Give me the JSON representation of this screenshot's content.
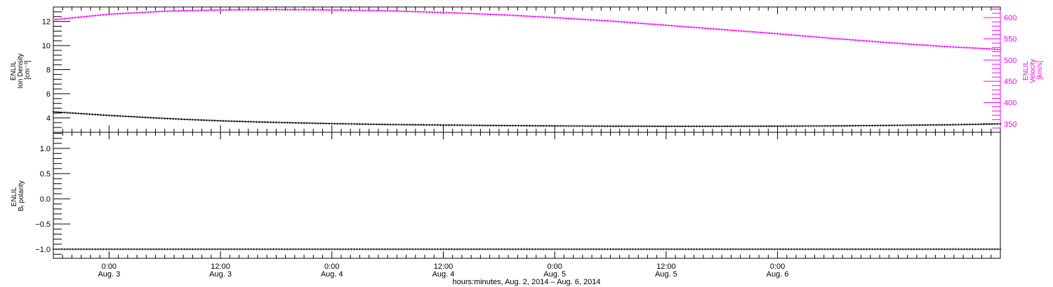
{
  "chart_data": [
    {
      "type": "line",
      "panel": "top",
      "y_left": {
        "label_line1": "ENLIL",
        "label_line2": "Ion Density",
        "label_line3": "[cm⁻³]",
        "ylim": [
          2.8,
          13.2
        ],
        "ticks": [
          4,
          6,
          8,
          10,
          12
        ],
        "tick_labels": [
          "4",
          "6",
          "8",
          "10",
          "12"
        ]
      },
      "y_right": {
        "label_line1": "ENLIL",
        "label_line2": "Velocity",
        "label_line3": "[km/s]",
        "ylim": [
          330,
          625
        ],
        "ticks": [
          350,
          400,
          450,
          500,
          550,
          600
        ],
        "tick_labels": [
          "350",
          "400",
          "450",
          "500",
          "550",
          "600"
        ],
        "color": "#ff00ff"
      },
      "series": [
        {
          "axis": "left",
          "color": "#000000",
          "x_hours": [
            0,
            6,
            12,
            18,
            24,
            30,
            36,
            42,
            48,
            54,
            60,
            66,
            72,
            78,
            84,
            90,
            96,
            102
          ],
          "values": [
            4.5,
            4.2,
            3.95,
            3.75,
            3.62,
            3.52,
            3.45,
            3.4,
            3.36,
            3.33,
            3.31,
            3.3,
            3.3,
            3.31,
            3.33,
            3.37,
            3.42,
            3.5
          ]
        },
        {
          "axis": "right",
          "color": "#ff00ff",
          "x_hours": [
            0,
            6,
            12,
            18,
            24,
            30,
            36,
            42,
            48,
            54,
            60,
            66,
            72,
            78,
            84,
            90,
            96,
            102
          ],
          "values": [
            595,
            608,
            615,
            618,
            619,
            618,
            616,
            612,
            607,
            600,
            592,
            582,
            572,
            562,
            551,
            541,
            532,
            525
          ]
        }
      ]
    },
    {
      "type": "line",
      "panel": "bottom",
      "y_left": {
        "label_line1": "ENLIL",
        "label_line2": "Bᵣ polarity",
        "ylim": [
          -1.18,
          1.32
        ],
        "ticks": [
          -1.0,
          -0.5,
          0.0,
          0.5,
          1.0
        ],
        "tick_labels": [
          "−1.0",
          "−0.5",
          "0.0",
          "0.5",
          "1.0"
        ]
      },
      "series": [
        {
          "axis": "left",
          "color": "#000000",
          "x_hours": [
            0,
            102
          ],
          "values": [
            -1.0,
            -1.0
          ]
        }
      ]
    }
  ],
  "x_axis": {
    "range_hours": [
      0,
      102
    ],
    "ticks": [
      {
        "hours": 6,
        "time": "0:00",
        "date": "Aug. 3"
      },
      {
        "hours": 18,
        "time": "12:00",
        "date": "Aug. 3"
      },
      {
        "hours": 30,
        "time": "0:00",
        "date": "Aug. 4"
      },
      {
        "hours": 42,
        "time": "12:00",
        "date": "Aug. 4"
      },
      {
        "hours": 54,
        "time": "0:00",
        "date": "Aug. 5"
      },
      {
        "hours": 66,
        "time": "12:00",
        "date": "Aug. 5"
      },
      {
        "hours": 78,
        "time": "0:00",
        "date": "Aug. 6"
      }
    ],
    "label": "hours:minutes, Aug.  2, 2014 – Aug.  6, 2014"
  }
}
